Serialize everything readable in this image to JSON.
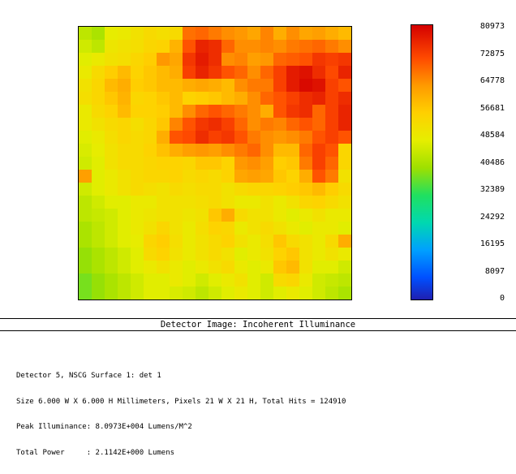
{
  "window": {
    "caption": "Detector Image: Incoherent Illuminance"
  },
  "colorbar": {
    "ticks": [
      "80973",
      "72875",
      "64778",
      "56681",
      "48584",
      "40486",
      "32389",
      "24292",
      "16195",
      "8097",
      "0"
    ],
    "min": 0,
    "max": 80973,
    "colors": [
      "#1f1fb0",
      "#0050ff",
      "#00a0ff",
      "#00d8b0",
      "#20e060",
      "#9ee000",
      "#e6ee00",
      "#ffd000",
      "#ff9a00",
      "#ff4a00",
      "#d40000"
    ]
  },
  "info": {
    "line1": "Detector 5, NSCG Surface 1: det 1",
    "line2": "Size 6.000 W X 6.000 H Millimeters, Pixels 21 W X 21 H, Total Hits = 124910",
    "line3": "Peak Illuminance: 8.0973E+004 Lumens/M^2",
    "line4": "Total Power     : 2.1142E+000 Lumens"
  },
  "chart_data": {
    "type": "heatmap",
    "title": "",
    "xlabel": "",
    "ylabel": "",
    "rows": 21,
    "cols": 21,
    "value_range": [
      0,
      80973
    ],
    "values": [
      [
        44,
        42,
        49,
        50,
        52,
        54,
        53,
        54,
        69,
        70,
        68,
        66,
        65,
        63,
        67,
        62,
        66,
        63,
        64,
        62,
        60
      ],
      [
        46,
        44,
        51,
        52,
        53,
        55,
        56,
        61,
        72,
        77,
        76,
        70,
        66,
        66,
        67,
        66,
        68,
        69,
        70,
        68,
        66
      ],
      [
        48,
        50,
        52,
        53,
        55,
        57,
        65,
        63,
        75,
        78,
        76,
        66,
        67,
        64,
        65,
        70,
        71,
        72,
        75,
        74,
        75
      ],
      [
        50,
        54,
        57,
        60,
        56,
        58,
        60,
        62,
        74,
        77,
        75,
        72,
        70,
        66,
        70,
        74,
        78,
        79,
        76,
        73,
        77
      ],
      [
        52,
        55,
        60,
        62,
        57,
        58,
        60,
        60,
        62,
        63,
        62,
        60,
        66,
        68,
        68,
        74,
        78,
        80,
        79,
        74,
        72
      ],
      [
        53,
        55,
        58,
        61,
        55,
        56,
        58,
        60,
        56,
        57,
        58,
        60,
        62,
        66,
        70,
        72,
        74,
        76,
        77,
        74,
        76
      ],
      [
        50,
        54,
        56,
        60,
        56,
        56,
        57,
        60,
        66,
        70,
        72,
        70,
        68,
        66,
        62,
        72,
        75,
        76,
        70,
        74,
        77
      ],
      [
        50,
        52,
        54,
        55,
        53,
        55,
        58,
        67,
        72,
        75,
        76,
        74,
        70,
        66,
        68,
        67,
        70,
        72,
        70,
        74,
        77
      ],
      [
        48,
        50,
        53,
        55,
        54,
        55,
        62,
        72,
        73,
        76,
        74,
        75,
        72,
        68,
        66,
        65,
        66,
        68,
        72,
        74,
        72
      ],
      [
        47,
        49,
        52,
        54,
        54,
        56,
        59,
        62,
        64,
        65,
        64,
        66,
        68,
        70,
        66,
        60,
        60,
        70,
        74,
        72,
        55
      ],
      [
        46,
        48,
        52,
        54,
        54,
        55,
        56,
        56,
        55,
        58,
        58,
        56,
        65,
        66,
        64,
        57,
        58,
        68,
        74,
        70,
        55
      ],
      [
        64,
        48,
        50,
        52,
        54,
        55,
        55,
        56,
        54,
        55,
        54,
        56,
        63,
        64,
        63,
        58,
        56,
        62,
        72,
        68,
        52
      ],
      [
        46,
        48,
        50,
        52,
        54,
        53,
        52,
        54,
        53,
        54,
        54,
        52,
        54,
        55,
        55,
        56,
        57,
        58,
        60,
        57,
        54
      ],
      [
        44,
        46,
        48,
        48,
        50,
        50,
        52,
        52,
        52,
        53,
        54,
        52,
        50,
        50,
        52,
        50,
        52,
        55,
        56,
        54,
        52
      ],
      [
        44,
        45,
        46,
        48,
        50,
        51,
        52,
        52,
        51,
        52,
        58,
        62,
        54,
        52,
        52,
        50,
        48,
        50,
        52,
        50,
        50
      ],
      [
        42,
        44,
        46,
        48,
        50,
        52,
        55,
        52,
        50,
        53,
        56,
        55,
        50,
        52,
        54,
        52,
        50,
        48,
        50,
        50,
        48
      ],
      [
        42,
        44,
        46,
        48,
        49,
        55,
        57,
        53,
        50,
        52,
        54,
        56,
        52,
        50,
        53,
        58,
        54,
        52,
        50,
        54,
        62
      ],
      [
        40,
        42,
        44,
        46,
        48,
        54,
        56,
        52,
        50,
        52,
        54,
        52,
        48,
        50,
        52,
        56,
        58,
        52,
        50,
        52,
        50
      ],
      [
        40,
        42,
        44,
        46,
        48,
        50,
        52,
        50,
        48,
        50,
        52,
        54,
        50,
        48,
        50,
        58,
        60,
        52,
        48,
        48,
        46
      ],
      [
        38,
        40,
        42,
        44,
        46,
        48,
        48,
        50,
        48,
        46,
        48,
        50,
        52,
        48,
        46,
        54,
        55,
        50,
        46,
        45,
        44
      ],
      [
        38,
        40,
        42,
        44,
        46,
        48,
        48,
        47,
        46,
        44,
        46,
        48,
        50,
        48,
        46,
        48,
        50,
        48,
        46,
        44,
        42
      ]
    ]
  }
}
